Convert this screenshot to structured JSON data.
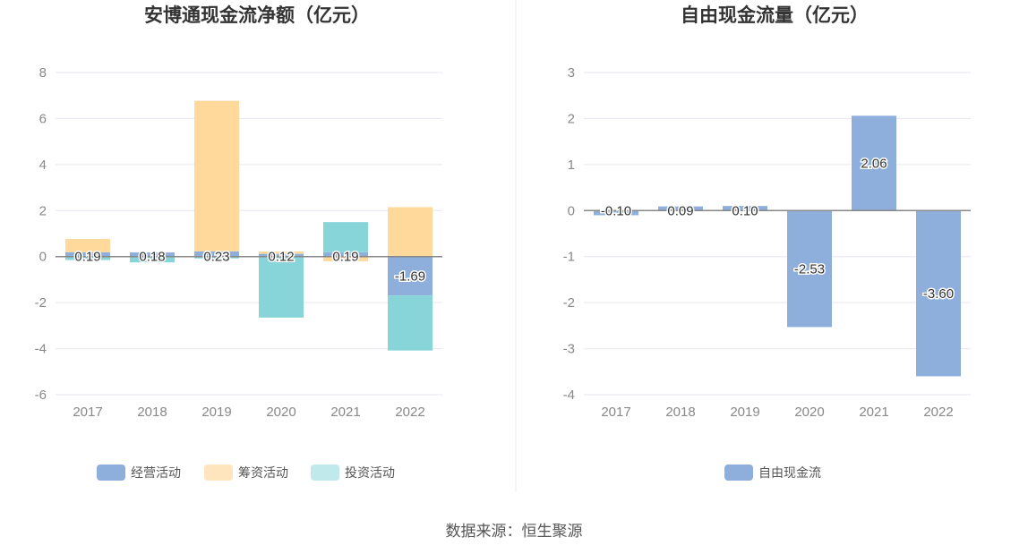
{
  "source": "数据来源：恒生聚源",
  "colors": {
    "operating": "#8eaedb",
    "financing": "#fed99b",
    "investing": "#87d5d9",
    "fcf": "#8eaedb"
  },
  "chart_data": [
    {
      "type": "bar",
      "stacked": true,
      "title": "安博通现金流净额（亿元）",
      "categories": [
        "2017",
        "2018",
        "2019",
        "2020",
        "2021",
        "2022"
      ],
      "ylim": [
        -6,
        8
      ],
      "yticks": [
        -6,
        -4,
        -2,
        0,
        2,
        4,
        6,
        8
      ],
      "legend_position": "bottom",
      "series": [
        {
          "name": "经营活动",
          "values": [
            0.19,
            0.18,
            0.23,
            0.12,
            0.19,
            -1.69
          ],
          "labels": [
            "0.19",
            "0.18",
            "0.23",
            "0.12",
            "0.19",
            "-1.69"
          ]
        },
        {
          "name": "筹资活动",
          "values": [
            0.58,
            0.0,
            6.54,
            0.1,
            -0.2,
            2.15
          ]
        },
        {
          "name": "投资活动",
          "values": [
            -0.15,
            -0.25,
            -0.05,
            -2.65,
            1.31,
            -2.39
          ]
        }
      ]
    },
    {
      "type": "bar",
      "title": "自由现金流量（亿元）",
      "categories": [
        "2017",
        "2018",
        "2019",
        "2020",
        "2021",
        "2022"
      ],
      "ylim": [
        -4,
        3
      ],
      "yticks": [
        -4,
        -3,
        -2,
        -1,
        0,
        1,
        2,
        3
      ],
      "legend_position": "bottom",
      "series": [
        {
          "name": "自由现金流",
          "values": [
            -0.1,
            0.09,
            0.1,
            -2.53,
            2.06,
            -3.6
          ],
          "labels": [
            "-0.10",
            "0.09",
            "0.10",
            "-2.53",
            "2.06",
            "-3.60"
          ]
        }
      ]
    }
  ]
}
